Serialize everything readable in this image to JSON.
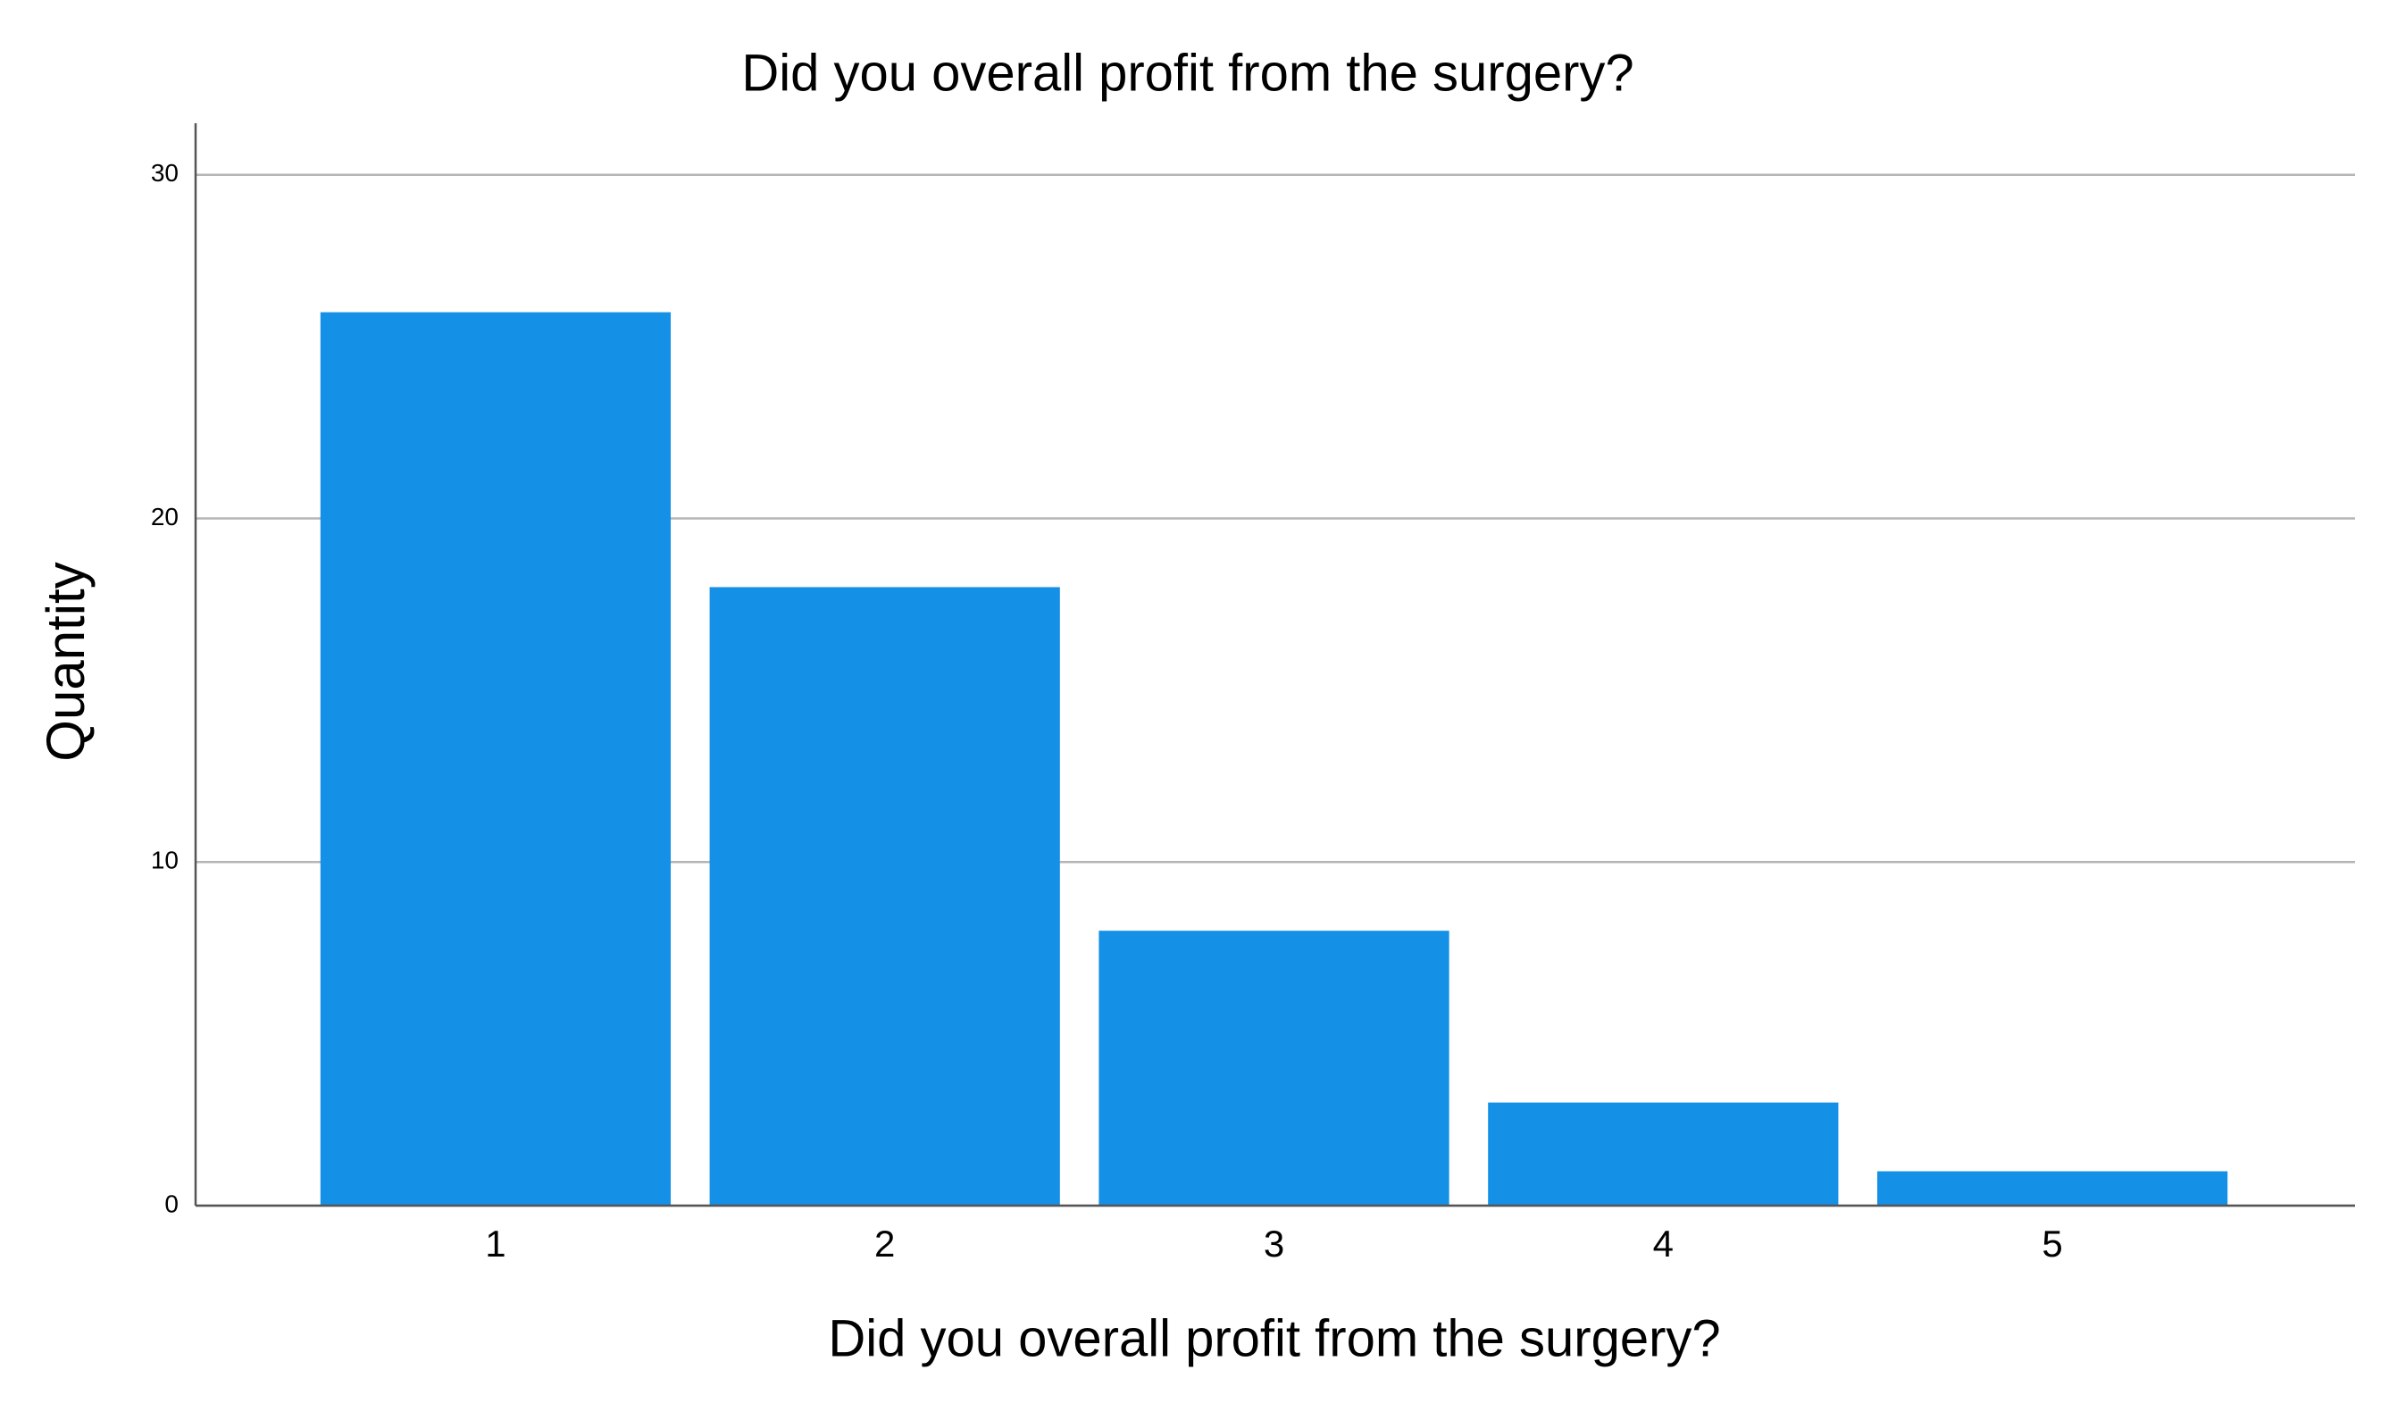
{
  "chart_data": {
    "type": "bar",
    "title": "Did you overall profit from the surgery?",
    "x_label": "Did you overall profit from the surgery?",
    "y_label": "Quantity",
    "categories": [
      "1",
      "2",
      "3",
      "4",
      "5"
    ],
    "values": [
      26,
      18,
      8,
      3,
      1
    ],
    "color": "#1490e6",
    "ylim": [
      0,
      31.5
    ],
    "yticks": [
      0,
      10,
      20,
      30
    ],
    "grid": true
  }
}
